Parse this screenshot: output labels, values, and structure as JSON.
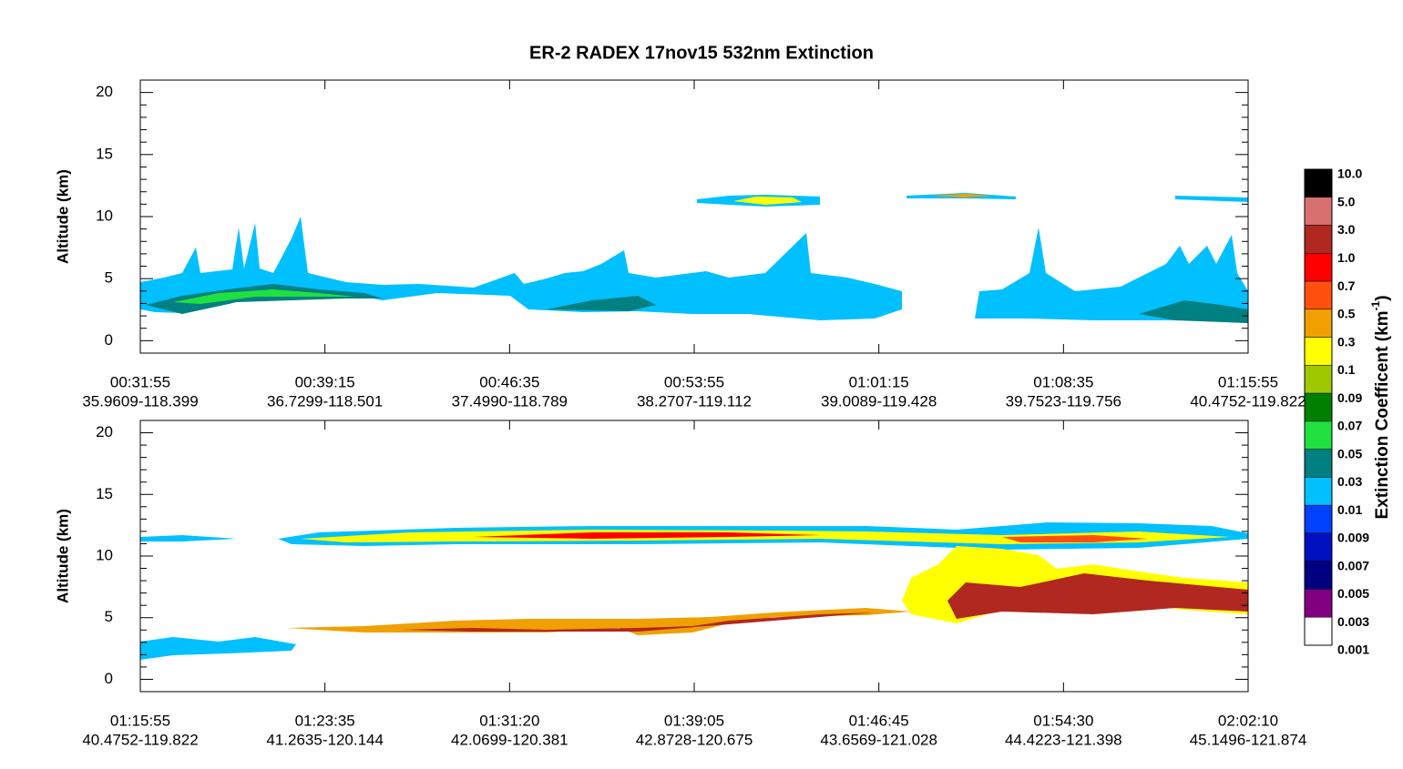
{
  "title": "ER-2  RADEX  17nov15  532nm Extinction",
  "panels": [
    {
      "ylabel": "Altitude (km)",
      "ylim": [
        -1,
        21
      ],
      "yticks": [
        0,
        5,
        10,
        15,
        20
      ],
      "xticks": [
        [
          "00:31:55",
          "35.9609-118.399"
        ],
        [
          "00:39:15",
          "36.7299-118.501"
        ],
        [
          "00:46:35",
          "37.4990-118.789"
        ],
        [
          "00:53:55",
          "38.2707-119.112"
        ],
        [
          "01:01:15",
          "39.0089-119.428"
        ],
        [
          "01:08:35",
          "39.7523-119.756"
        ],
        [
          "01:15:55",
          "40.4752-119.822"
        ]
      ]
    },
    {
      "ylabel": "Altitude (km)",
      "ylim": [
        -1,
        21
      ],
      "yticks": [
        0,
        5,
        10,
        15,
        20
      ],
      "xticks": [
        [
          "01:15:55",
          "40.4752-119.822"
        ],
        [
          "01:23:35",
          "41.2635-120.144"
        ],
        [
          "01:31:20",
          "42.0699-120.381"
        ],
        [
          "01:39:05",
          "42.8728-120.675"
        ],
        [
          "01:46:45",
          "43.6569-121.028"
        ],
        [
          "01:54:30",
          "44.4223-121.398"
        ],
        [
          "02:02:10",
          "45.1496-121.874"
        ]
      ]
    }
  ],
  "colorbar": {
    "label": [
      "Extinction Coefficent (km",
      "-1",
      ")"
    ],
    "labels": [
      "10.0",
      "5.0",
      "3.0",
      "1.0",
      "0.7",
      "0.5",
      "0.3",
      "0.1",
      "0.09",
      "0.07",
      "0.05",
      "0.03",
      "0.01",
      "0.009",
      "0.007",
      "0.005",
      "0.003",
      "0.001"
    ],
    "colors": [
      "#000000",
      "#d87070",
      "#b02820",
      "#ff0000",
      "#ff5010",
      "#f0a000",
      "#ffff00",
      "#a0c800",
      "#008000",
      "#20e040",
      "#008080",
      "#00c0ff",
      "#0040ff",
      "#0010c0",
      "#000080",
      "#800080",
      "#ffffff"
    ]
  }
}
